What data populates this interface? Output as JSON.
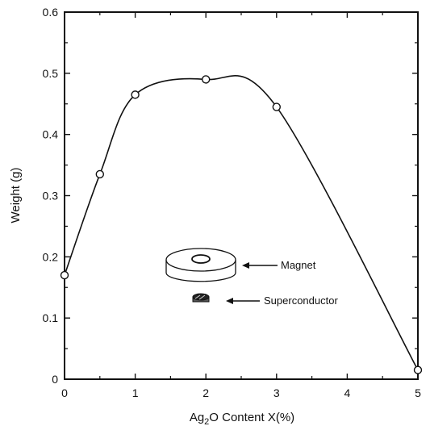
{
  "chart_data": {
    "type": "scatter",
    "title": "",
    "xlabel_main": "Ag",
    "xlabel_sub": "2",
    "xlabel_rest": "O Content X(%)",
    "ylabel": "Weight (g)",
    "xlim": [
      0,
      5
    ],
    "ylim": [
      0,
      0.6
    ],
    "xticks": [
      "0",
      "1",
      "2",
      "3",
      "4",
      "5"
    ],
    "yticks": [
      "0",
      "0.1",
      "0.2",
      "0.3",
      "0.4",
      "0.5",
      "0.6"
    ],
    "grid": false,
    "series": [
      {
        "x": [
          0,
          0.5,
          1,
          2,
          3,
          5
        ],
        "y": [
          0.17,
          0.335,
          0.465,
          0.49,
          0.445,
          0.015
        ]
      }
    ],
    "annotations": {
      "magnet": "Magnet",
      "superconductor": "Superconductor"
    }
  }
}
